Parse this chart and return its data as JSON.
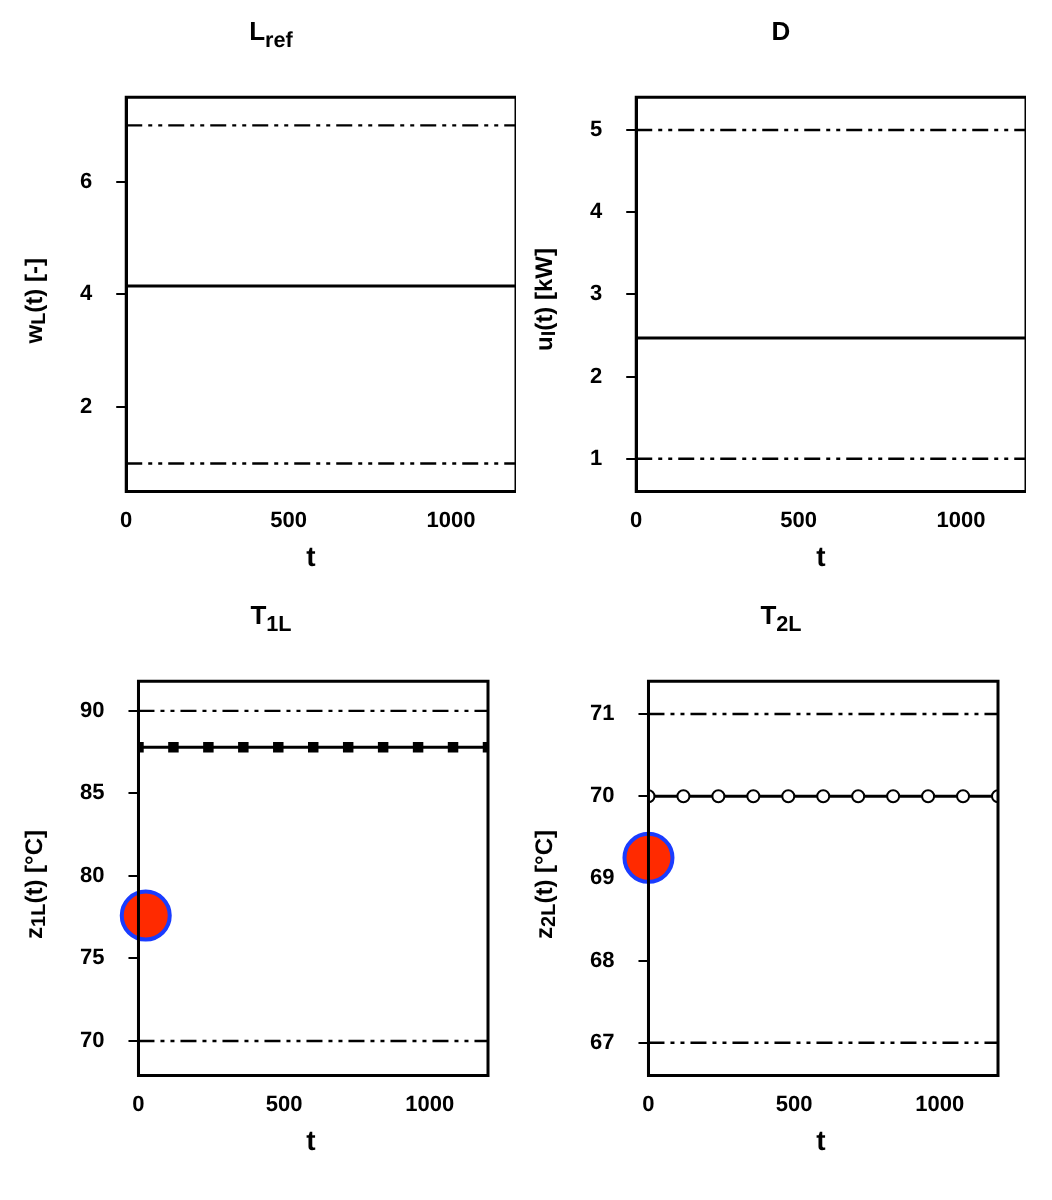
{
  "chart_data": [
    {
      "type": "line",
      "title": "L$_{ref}$",
      "xlabel": "t",
      "ylabel": "w$_{L}$(t) [-]",
      "x": [
        0,
        1200
      ],
      "series": [
        {
          "color": "#000000",
          "values": [
            4.15,
            4.15
          ]
        }
      ],
      "xlim": [
        0,
        1200
      ],
      "xticks": [
        0,
        500,
        1000
      ],
      "ylim": [
        0.5,
        7.5
      ],
      "yticks": [
        2,
        4,
        6
      ],
      "ref_lines": [
        {
          "axis": "y",
          "value": 7,
          "line_style": "dashed",
          "color": "#000000"
        },
        {
          "axis": "y",
          "value": 1,
          "line_style": "dashed",
          "color": "#000000"
        }
      ],
      "grid": false,
      "legend": false,
      "marker": "none"
    },
    {
      "type": "line",
      "title": "D",
      "xlabel": "t",
      "ylabel": "u$_{I}$(t) [kW]",
      "x": [
        0,
        1200
      ],
      "series": [
        {
          "color": "#000000",
          "values": [
            2.47,
            2.47
          ]
        }
      ],
      "xlim": [
        0,
        1200
      ],
      "xticks": [
        0,
        500,
        1000
      ],
      "ylim": [
        0.6,
        5.4
      ],
      "yticks": [
        1,
        2,
        3,
        4,
        5
      ],
      "ref_lines": [
        {
          "axis": "y",
          "value": 5,
          "line_style": "dashed",
          "color": "#000000"
        },
        {
          "axis": "y",
          "value": 1,
          "line_style": "dashed",
          "color": "#000000"
        }
      ],
      "grid": false,
      "legend": false,
      "marker": "none"
    },
    {
      "type": "line",
      "title": "T$_{1L}$",
      "xlabel": "t",
      "ylabel": "z$_{1L}$(t) [°C]",
      "x": [
        0,
        120,
        240,
        360,
        480,
        600,
        720,
        840,
        960,
        1080,
        1200
      ],
      "series": [
        {
          "color": "#000000",
          "marker": "square",
          "values": [
            87.8,
            87.8,
            87.8,
            87.8,
            87.8,
            87.8,
            87.8,
            87.8,
            87.8,
            87.8,
            87.8
          ]
        },
        {
          "type": "scatter",
          "color": "#ff2a00",
          "marker": "circle",
          "x": [
            25
          ],
          "values": [
            77.6
          ]
        }
      ],
      "xlim": [
        0,
        1200
      ],
      "xticks": [
        0,
        500,
        1000
      ],
      "ylim": [
        67.9,
        91.8
      ],
      "yticks": [
        70,
        75,
        80,
        85,
        90
      ],
      "ref_lines": [
        {
          "axis": "y",
          "value": 90,
          "line_style": "dashed",
          "color": "#000000"
        },
        {
          "axis": "y",
          "value": 70,
          "line_style": "dashed",
          "color": "#000000"
        }
      ],
      "grid": false,
      "legend": false
    },
    {
      "type": "line",
      "title": "T$_{2L}$",
      "xlabel": "t",
      "ylabel": "z$_{2L}$(t) [°C]",
      "x": [
        0,
        120,
        240,
        360,
        480,
        600,
        720,
        840,
        960,
        1080,
        1200
      ],
      "series": [
        {
          "color": "#000000",
          "marker": "circle",
          "values": [
            70,
            70,
            70,
            70,
            70,
            70,
            70,
            70,
            70,
            70,
            70
          ]
        },
        {
          "type": "scatter",
          "color": "#ff2a00",
          "marker": "circle",
          "x": [
            0
          ],
          "values": [
            69.25
          ]
        }
      ],
      "xlim": [
        0,
        1200
      ],
      "xticks": [
        0,
        500,
        1000
      ],
      "ylim": [
        66.6,
        71.4
      ],
      "yticks": [
        67,
        68,
        69,
        70,
        71
      ],
      "ref_lines": [
        {
          "axis": "y",
          "value": 71,
          "line_style": "dashed",
          "color": "#000000"
        },
        {
          "axis": "y",
          "value": 67,
          "line_style": "dashed",
          "color": "#000000"
        }
      ],
      "grid": false,
      "legend": false
    }
  ]
}
